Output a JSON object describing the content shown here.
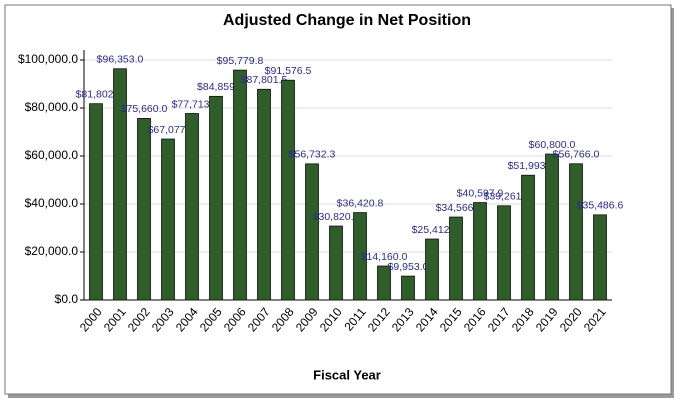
{
  "chart_data": {
    "type": "bar",
    "title": "Adjusted Change in Net Position",
    "x_label": "Fiscal Year",
    "categories": [
      "2000",
      "2001",
      "2002",
      "2003",
      "2004",
      "2005",
      "2006",
      "2007",
      "2008",
      "2009",
      "2010",
      "2011",
      "2012",
      "2013",
      "2014",
      "2015",
      "2016",
      "2017",
      "2018",
      "2019",
      "2020",
      "2021"
    ],
    "values": [
      81802,
      96353,
      75660,
      67077,
      77713,
      84859,
      95779.8,
      87801.5,
      91576.5,
      56732.3,
      30820.6,
      36420.8,
      14160,
      9953,
      25412,
      34566,
      40597.9,
      39261,
      51993,
      60800,
      56766,
      35486.6
    ],
    "value_labels": [
      "$81,802.",
      "$96,353.0",
      "$75,660.0",
      "$67,077.",
      "$77,713.",
      "$84,859",
      "$95,779.8",
      "$87,801.5",
      "$91,576.5",
      "$56,732.3",
      "$30,820.6",
      "$36,420.8",
      "$14,160.0",
      "$9,953.0",
      "$25,412.",
      "$34,566.",
      "$40,597.9",
      "$39,261.",
      "$51,993.",
      "$60,800.0",
      "$56,766.0",
      "$35,486.6"
    ],
    "color": "#2f5e2a",
    "ylim": [
      0,
      100000
    ],
    "yticks": [
      {
        "value": 0,
        "label": "$0.0"
      },
      {
        "value": 20000,
        "label": "$20,000.0"
      },
      {
        "value": 40000,
        "label": "$40,000.0"
      },
      {
        "value": 60000,
        "label": "$60,000.0"
      },
      {
        "value": 80000,
        "label": "$80,000.0"
      },
      {
        "value": 100000,
        "label": "$100,000.0"
      }
    ],
    "grid": true
  }
}
